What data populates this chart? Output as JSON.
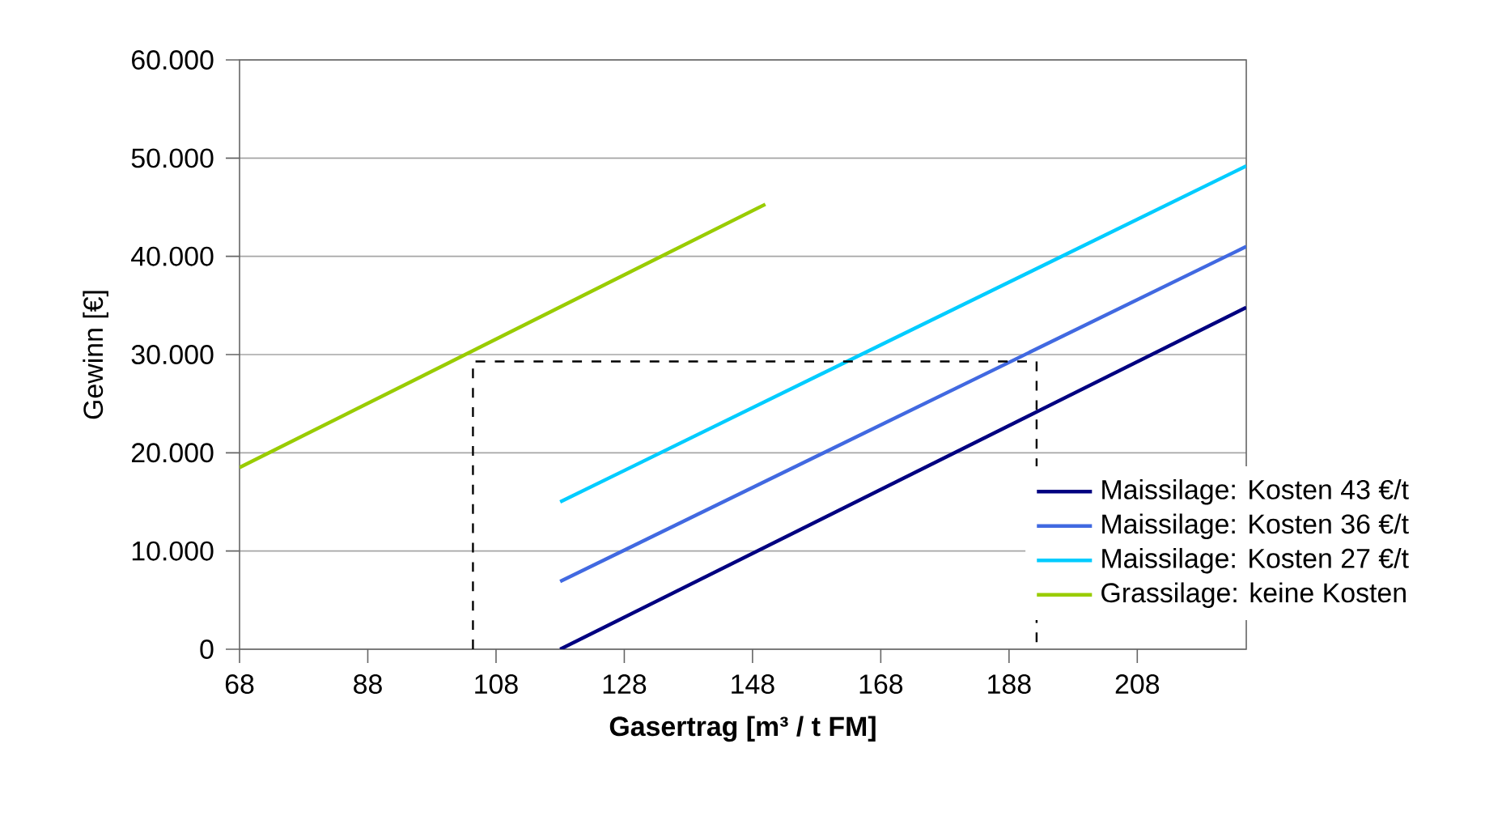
{
  "chart_data": {
    "type": "line",
    "xlabel": "Gasertrag [m³ / t FM]",
    "ylabel": "Gewinn [€]",
    "xlim": [
      68,
      225
    ],
    "xticks": [
      68,
      88,
      108,
      128,
      148,
      168,
      188,
      208
    ],
    "ylim": [
      0,
      60000
    ],
    "yticks": [
      {
        "value": 0,
        "label": "0"
      },
      {
        "value": 10000,
        "label": "10.000"
      },
      {
        "value": 20000,
        "label": "20.000"
      },
      {
        "value": 30000,
        "label": "30.000"
      },
      {
        "value": 40000,
        "label": "40.000"
      },
      {
        "value": 50000,
        "label": "50.000"
      },
      {
        "value": 60000,
        "label": "60.000"
      }
    ],
    "grid": "y",
    "legend": "right",
    "line_style": "solid",
    "series": [
      {
        "name": "Maissilage: Kosten 43 €/t",
        "color": "#000080",
        "x": [
          118,
          225
        ],
        "values": [
          0,
          34800
        ]
      },
      {
        "name": "Maissilage: Kosten 36 €/t",
        "color": "#4169e1",
        "x": [
          118,
          225
        ],
        "values": [
          6900,
          41000
        ]
      },
      {
        "name": "Maissilage: Kosten 27 €/t",
        "color": "#00ccff",
        "x": [
          118,
          225
        ],
        "values": [
          15000,
          49200
        ]
      },
      {
        "name": "Grassilage: keine Kosten",
        "color": "#99cc00",
        "x": [
          68,
          150
        ],
        "values": [
          18500,
          45300
        ]
      },
      {
        "color": "#000000",
        "line_style": "dashed",
        "x": [
          104.4,
          104.4,
          192.3,
          192.3
        ],
        "values": [
          0,
          29300,
          29300,
          0
        ]
      }
    ]
  }
}
